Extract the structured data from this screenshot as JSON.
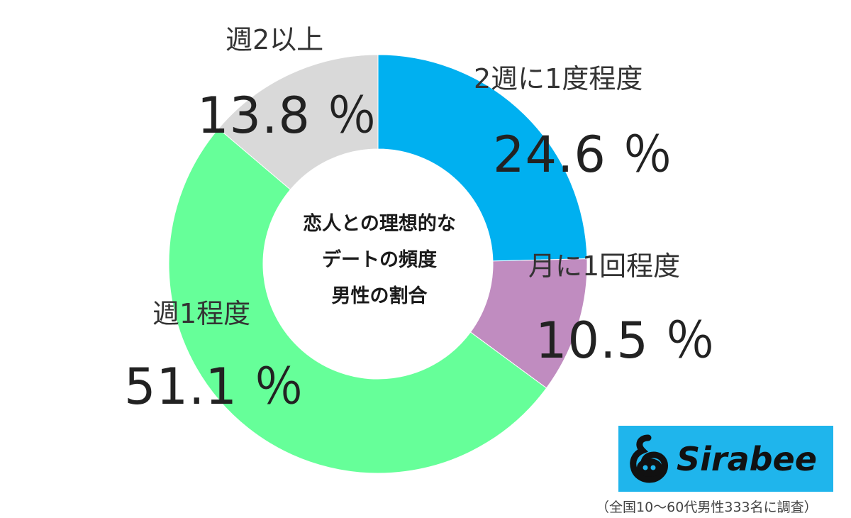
{
  "chart_data": {
    "type": "pie",
    "donut": true,
    "center_title": [
      "恋人との理想的な",
      "デートの頻度",
      "男性の割合"
    ],
    "categories": [
      "2週に1度程度",
      "月に1回程度",
      "週1程度",
      "週2以上"
    ],
    "values": [
      24.6,
      10.5,
      51.1,
      13.8
    ],
    "value_labels": [
      "24.6 ％",
      "10.5 ％",
      "51.1 ％",
      "13.8 ％"
    ],
    "colors": [
      "#00b0f0",
      "#c08cc0",
      "#66ff99",
      "#d9d9d9"
    ]
  },
  "logo": {
    "text": "Sirabee"
  },
  "note": "（全国10～60代男性333名に調査）"
}
